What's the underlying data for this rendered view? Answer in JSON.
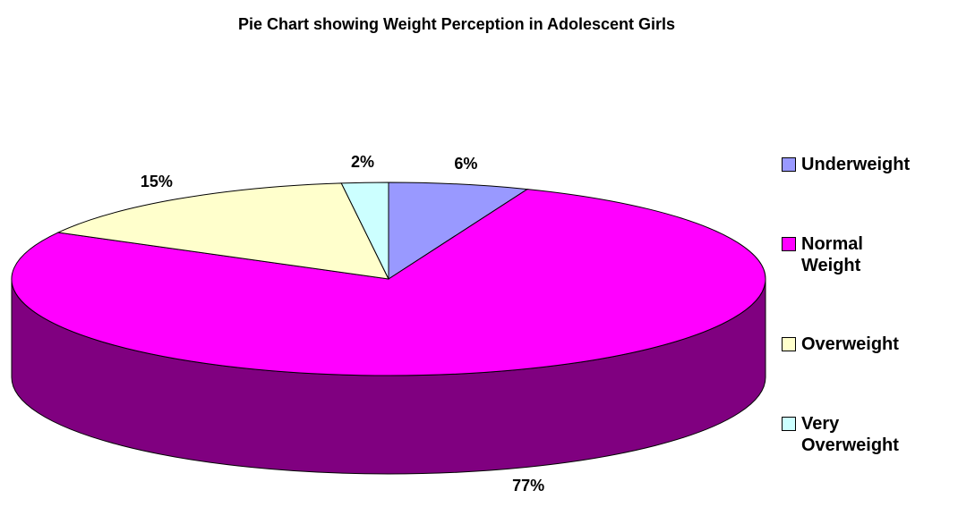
{
  "chart_data": {
    "type": "pie",
    "title": "Pie Chart showing Weight Perception in Adolescent Girls",
    "categories": [
      "Underweight",
      "Normal Weight",
      "Overweight",
      "Very Overweight"
    ],
    "values": [
      6,
      77,
      15,
      2
    ],
    "value_labels": [
      "6%",
      "77%",
      "15%",
      "2%"
    ],
    "colors": [
      "#9999ff",
      "#ff00ff",
      "#ffffcc",
      "#ccffff"
    ],
    "legend": "right"
  }
}
